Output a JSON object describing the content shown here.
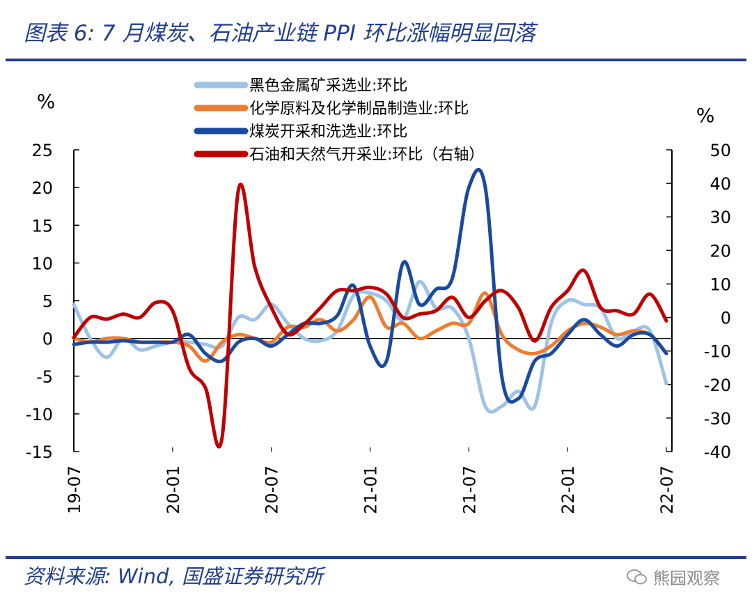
{
  "header": {
    "title": "图表 6:  7 月煤炭、石油产业链 PPI 环比涨幅明显回落"
  },
  "footer": {
    "source": "资料来源:  Wind, 国盛证券研究所",
    "watermark": "熊园观察"
  },
  "chart_data": {
    "type": "line",
    "title": "图表 6:  7 月煤炭、石油产业链 PPI 环比涨幅明显回落",
    "left_unit": "%",
    "right_unit": "%",
    "y_left": {
      "range": [
        -15,
        25
      ],
      "ticks": [
        25,
        20,
        15,
        10,
        5,
        0,
        -5,
        -10,
        -15
      ],
      "tick_labels": [
        "25",
        "20",
        "15",
        "10",
        "5",
        "0",
        "-5",
        "-10",
        "-15"
      ]
    },
    "y_right": {
      "range": [
        -40,
        50
      ],
      "ticks": [
        50,
        40,
        30,
        20,
        10,
        0,
        -10,
        -20,
        -30,
        -40
      ],
      "tick_labels": [
        "50",
        "40",
        "30",
        "20",
        "10",
        "0",
        "-10",
        "-20",
        "-30",
        "-40"
      ]
    },
    "x_tick_labels": [
      "19-07",
      "20-01",
      "20-07",
      "21-01",
      "21-07",
      "22-01",
      "22-07"
    ],
    "x_tick_index": [
      0,
      6,
      12,
      18,
      24,
      30,
      36
    ],
    "months": 37,
    "series": [
      {
        "name": "黑色金属矿采选业:环比",
        "axis": "left",
        "color": "#9dc3e6",
        "values": [
          4.5,
          0,
          -2.5,
          0,
          -1.5,
          -1,
          -0.5,
          -0.5,
          -0.8,
          -1,
          2.8,
          2.5,
          4.5,
          2,
          0,
          -0.3,
          1,
          5.7,
          6,
          5,
          2.5,
          7.5,
          4,
          4,
          0,
          -9,
          -9,
          -7,
          -9,
          2,
          5,
          4.5,
          4,
          0,
          1,
          1,
          -6
        ]
      },
      {
        "name": "化学原料及化学制品制造业:环比",
        "axis": "left",
        "color": "#ed7d31",
        "values": [
          0,
          -0.5,
          0,
          0,
          -0.5,
          -0.5,
          -0.5,
          -1,
          -3,
          -0.5,
          0.5,
          0,
          -0.5,
          1.5,
          1.5,
          2.5,
          1,
          2.5,
          5.5,
          1.5,
          2,
          0,
          1,
          2,
          2,
          6,
          0.5,
          -1.5,
          -2,
          -1,
          1,
          2,
          1.5,
          0.5,
          1,
          0.5,
          -2
        ]
      },
      {
        "name": "煤炭开采和洗选业:环比",
        "axis": "left",
        "color": "#1a4a9e",
        "values": [
          -0.8,
          -0.5,
          -0.5,
          -0.3,
          -0.5,
          -0.5,
          -0.5,
          0.5,
          -2,
          -3,
          -0.5,
          0,
          -1,
          0.5,
          2,
          2,
          3,
          7,
          -1,
          -3,
          10,
          4.5,
          6.5,
          8,
          20,
          20,
          -5,
          -8,
          -3,
          -2,
          0.5,
          2.5,
          0.5,
          -1,
          0.5,
          0.5,
          -2
        ]
      },
      {
        "name": "石油和天然气开采业:环比（右轴）",
        "axis": "right",
        "color": "#c00000",
        "values": [
          -6,
          0,
          -0.5,
          1,
          0,
          4.5,
          2,
          -15,
          -21,
          -36,
          38,
          15,
          3,
          -5,
          -2,
          3,
          8,
          8,
          9,
          7,
          0,
          1,
          2,
          6,
          0,
          5,
          8,
          3,
          -7,
          3,
          8,
          14,
          3,
          2,
          1,
          7,
          -1
        ]
      }
    ]
  }
}
